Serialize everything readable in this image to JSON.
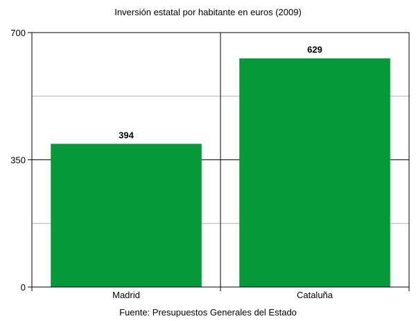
{
  "chart_data": {
    "type": "bar",
    "title": "Inversión estatal por habitante en euros (2009)",
    "source": "Fuente: Presupuestos Generales del Estado",
    "categories": [
      "Madrid",
      "Cataluña"
    ],
    "values": [
      394,
      629
    ],
    "value_labels": [
      "394",
      "629"
    ],
    "ylim": [
      0,
      700
    ],
    "yticks": [
      0,
      350,
      700
    ],
    "ytick_labels": [
      "0",
      "350",
      "700"
    ],
    "minor_gridlines": [
      175,
      525
    ],
    "grid": true,
    "legend": "none",
    "bar_color": "#06993a"
  }
}
